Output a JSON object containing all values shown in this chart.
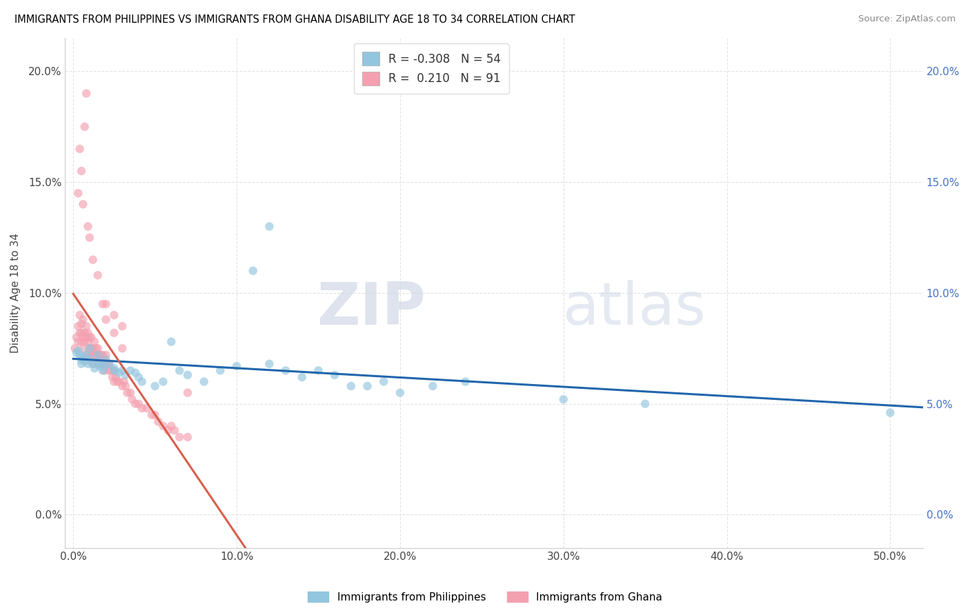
{
  "title": "IMMIGRANTS FROM PHILIPPINES VS IMMIGRANTS FROM GHANA DISABILITY AGE 18 TO 34 CORRELATION CHART",
  "source": "Source: ZipAtlas.com",
  "ylabel": "Disability Age 18 to 34",
  "x_ticks": [
    0.0,
    0.1,
    0.2,
    0.3,
    0.4,
    0.5
  ],
  "x_tick_labels": [
    "0.0%",
    "10.0%",
    "20.0%",
    "30.0%",
    "40.0%",
    "50.0%"
  ],
  "y_ticks": [
    0.0,
    0.05,
    0.1,
    0.15,
    0.2
  ],
  "y_tick_labels_left": [
    "0.0%",
    "5.0%",
    "10.0%",
    "15.0%",
    "20.0%"
  ],
  "y_tick_labels_right": [
    "0.0%",
    "5.0%",
    "10.0%",
    "15.0%",
    "20.0%"
  ],
  "xlim": [
    -0.005,
    0.52
  ],
  "ylim": [
    -0.015,
    0.215
  ],
  "philippines_color": "#92c5de",
  "ghana_color": "#f4a0b0",
  "philippines_line_color": "#2166ac",
  "ghana_line_color": "#d6604d",
  "ghana_line_dashed_color": "#f4a0b0",
  "philippines_R": -0.308,
  "philippines_N": 54,
  "ghana_R": 0.21,
  "ghana_N": 91,
  "legend_philippines_label": "Immigrants from Philippines",
  "legend_ghana_label": "Immigrants from Ghana",
  "watermark_zip": "ZIP",
  "watermark_atlas": "atlas",
  "philippines_scatter_x": [
    0.002,
    0.003,
    0.004,
    0.005,
    0.005,
    0.006,
    0.007,
    0.008,
    0.009,
    0.01,
    0.01,
    0.012,
    0.013,
    0.015,
    0.015,
    0.016,
    0.017,
    0.018,
    0.019,
    0.02,
    0.022,
    0.025,
    0.025,
    0.028,
    0.03,
    0.032,
    0.035,
    0.038,
    0.04,
    0.042,
    0.05,
    0.055,
    0.06,
    0.065,
    0.07,
    0.08,
    0.09,
    0.1,
    0.11,
    0.12,
    0.13,
    0.14,
    0.15,
    0.16,
    0.17,
    0.18,
    0.19,
    0.2,
    0.22,
    0.24,
    0.3,
    0.35,
    0.5,
    0.12
  ],
  "philippines_scatter_y": [
    0.073,
    0.074,
    0.072,
    0.07,
    0.068,
    0.071,
    0.069,
    0.072,
    0.068,
    0.07,
    0.075,
    0.068,
    0.066,
    0.072,
    0.069,
    0.067,
    0.068,
    0.065,
    0.067,
    0.07,
    0.068,
    0.066,
    0.065,
    0.064,
    0.065,
    0.063,
    0.065,
    0.064,
    0.062,
    0.06,
    0.058,
    0.06,
    0.078,
    0.065,
    0.063,
    0.06,
    0.065,
    0.067,
    0.11,
    0.068,
    0.065,
    0.062,
    0.065,
    0.063,
    0.058,
    0.058,
    0.06,
    0.055,
    0.058,
    0.06,
    0.052,
    0.05,
    0.046,
    0.13
  ],
  "ghana_scatter_x": [
    0.001,
    0.002,
    0.003,
    0.003,
    0.004,
    0.004,
    0.005,
    0.005,
    0.005,
    0.006,
    0.006,
    0.006,
    0.007,
    0.007,
    0.008,
    0.008,
    0.008,
    0.009,
    0.009,
    0.01,
    0.01,
    0.01,
    0.011,
    0.011,
    0.012,
    0.012,
    0.012,
    0.013,
    0.013,
    0.014,
    0.014,
    0.015,
    0.015,
    0.015,
    0.016,
    0.016,
    0.017,
    0.017,
    0.018,
    0.018,
    0.019,
    0.019,
    0.02,
    0.02,
    0.021,
    0.022,
    0.022,
    0.023,
    0.024,
    0.025,
    0.025,
    0.026,
    0.027,
    0.028,
    0.03,
    0.031,
    0.032,
    0.033,
    0.035,
    0.036,
    0.038,
    0.04,
    0.042,
    0.045,
    0.048,
    0.05,
    0.052,
    0.055,
    0.058,
    0.06,
    0.062,
    0.065,
    0.07,
    0.003,
    0.004,
    0.005,
    0.006,
    0.007,
    0.008,
    0.009,
    0.01,
    0.012,
    0.015,
    0.018,
    0.02,
    0.025,
    0.03,
    0.02,
    0.025,
    0.03,
    0.07
  ],
  "ghana_scatter_y": [
    0.075,
    0.08,
    0.085,
    0.078,
    0.082,
    0.09,
    0.078,
    0.082,
    0.086,
    0.075,
    0.08,
    0.088,
    0.082,
    0.078,
    0.08,
    0.085,
    0.072,
    0.078,
    0.082,
    0.075,
    0.08,
    0.072,
    0.075,
    0.08,
    0.072,
    0.075,
    0.068,
    0.072,
    0.078,
    0.072,
    0.075,
    0.072,
    0.075,
    0.068,
    0.072,
    0.068,
    0.072,
    0.068,
    0.072,
    0.068,
    0.07,
    0.065,
    0.068,
    0.072,
    0.068,
    0.068,
    0.065,
    0.065,
    0.062,
    0.065,
    0.06,
    0.062,
    0.06,
    0.06,
    0.058,
    0.06,
    0.058,
    0.055,
    0.055,
    0.052,
    0.05,
    0.05,
    0.048,
    0.048,
    0.045,
    0.045,
    0.042,
    0.04,
    0.038,
    0.04,
    0.038,
    0.035,
    0.035,
    0.145,
    0.165,
    0.155,
    0.14,
    0.175,
    0.19,
    0.13,
    0.125,
    0.115,
    0.108,
    0.095,
    0.088,
    0.082,
    0.075,
    0.095,
    0.09,
    0.085,
    0.055
  ]
}
